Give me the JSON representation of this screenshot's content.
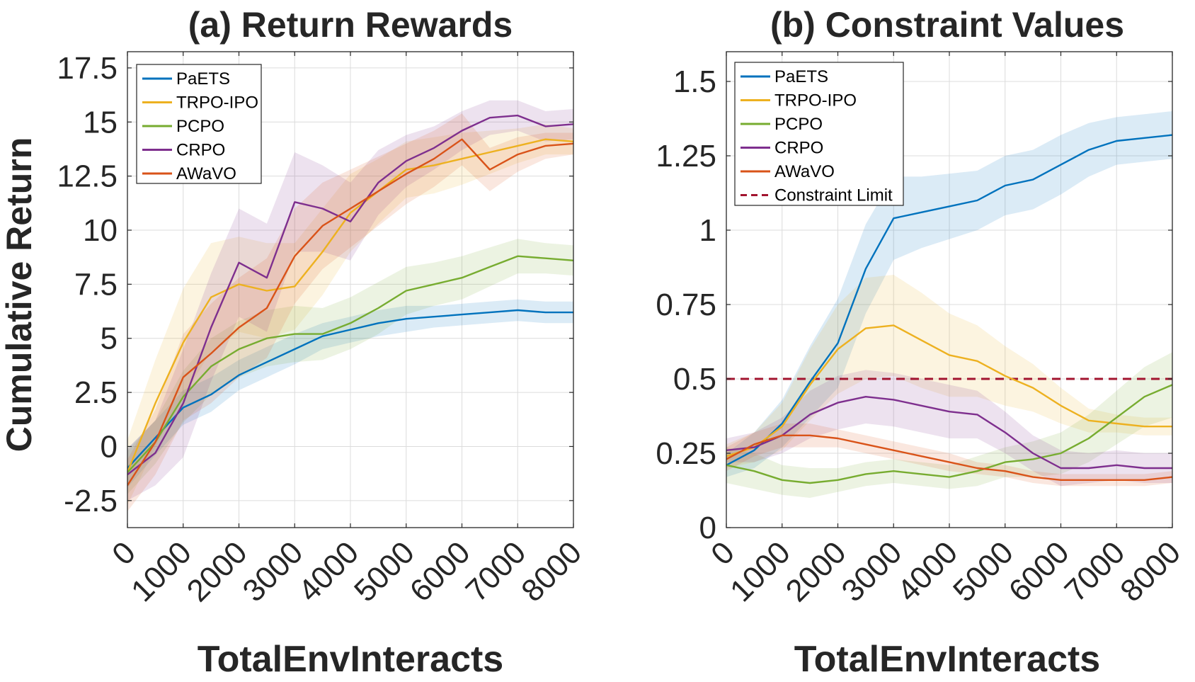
{
  "chart_data": [
    {
      "type": "line",
      "title": "(a) Return Rewards",
      "xlabel": "TotalEnvInteracts",
      "ylabel": "Cumulative Return",
      "xlim": [
        0,
        8000
      ],
      "ylim": [
        -3.75,
        18.25
      ],
      "xticks": [
        0,
        1000,
        2000,
        3000,
        4000,
        5000,
        6000,
        7000,
        8000
      ],
      "xtick_labels": [
        "0",
        "1000",
        "2000",
        "3000",
        "4000",
        "5000",
        "6000",
        "7000",
        "8000"
      ],
      "yticks": [
        -2.5,
        0,
        2.5,
        5,
        7.5,
        10,
        12.5,
        15,
        17.5
      ],
      "ytick_labels": [
        "-2.5",
        "0",
        "2.5",
        "5",
        "7.5",
        "10",
        "12.5",
        "15",
        "17.5"
      ],
      "grid": true,
      "legend_position": "top-left",
      "x": [
        0,
        500,
        1000,
        1500,
        2000,
        2500,
        3000,
        3500,
        4000,
        4500,
        5000,
        5500,
        6000,
        6500,
        7000,
        7500,
        8000
      ],
      "series": [
        {
          "name": "PaETS",
          "color": "#0072BD",
          "values": [
            -1.0,
            0.4,
            1.8,
            2.4,
            3.3,
            3.9,
            4.5,
            5.1,
            5.4,
            5.7,
            5.9,
            6.0,
            6.1,
            6.2,
            6.3,
            6.2,
            6.2
          ],
          "band": [
            0.9,
            0.8,
            0.8,
            0.8,
            0.7,
            0.7,
            0.7,
            0.6,
            0.6,
            0.6,
            0.6,
            0.5,
            0.5,
            0.5,
            0.5,
            0.5,
            0.5
          ]
        },
        {
          "name": "TRPO-IPO",
          "color": "#EDB120",
          "values": [
            -1.2,
            2.0,
            4.8,
            6.9,
            7.5,
            7.2,
            7.4,
            9.0,
            10.8,
            11.8,
            12.8,
            13.0,
            13.3,
            13.6,
            13.9,
            14.2,
            14.1
          ],
          "band": [
            1.5,
            2.0,
            2.5,
            2.5,
            2.2,
            2.2,
            2.0,
            2.0,
            1.8,
            1.5,
            1.3,
            1.3,
            1.2,
            1.0,
            0.8,
            0.7,
            0.6
          ]
        },
        {
          "name": "PCPO",
          "color": "#77AC30",
          "values": [
            -1.2,
            0.2,
            2.3,
            3.7,
            4.5,
            5.0,
            5.2,
            5.2,
            5.7,
            6.4,
            7.2,
            7.5,
            7.8,
            8.3,
            8.8,
            8.7,
            8.6
          ],
          "band": [
            1.0,
            1.0,
            1.2,
            1.3,
            1.3,
            1.3,
            1.3,
            1.2,
            1.2,
            1.2,
            1.1,
            1.0,
            1.0,
            0.9,
            0.8,
            0.7,
            0.7
          ]
        },
        {
          "name": "CRPO",
          "color": "#7E2F8E",
          "values": [
            -1.3,
            -0.3,
            2.0,
            5.5,
            8.5,
            7.8,
            11.3,
            11.0,
            10.4,
            12.2,
            13.2,
            13.8,
            14.6,
            15.2,
            15.3,
            14.8,
            14.9
          ],
          "band": [
            1.2,
            1.5,
            2.5,
            2.5,
            2.5,
            2.5,
            2.3,
            2.0,
            1.8,
            1.5,
            1.2,
            1.0,
            0.9,
            0.8,
            0.7,
            0.7,
            0.7
          ]
        },
        {
          "name": "AWaVO",
          "color": "#D95319",
          "values": [
            -1.8,
            0.2,
            3.2,
            4.3,
            5.5,
            6.4,
            8.8,
            10.2,
            11.0,
            11.8,
            12.6,
            13.3,
            14.2,
            12.8,
            13.5,
            13.9,
            14.0
          ],
          "band": [
            1.2,
            1.5,
            2.0,
            2.3,
            2.3,
            2.3,
            2.2,
            2.0,
            1.8,
            1.6,
            1.4,
            1.3,
            1.2,
            1.0,
            0.8,
            0.6,
            0.5
          ]
        }
      ]
    },
    {
      "type": "line",
      "title": "(b) Constraint Values",
      "xlabel": "TotalEnvInteracts",
      "ylabel": "",
      "xlim": [
        0,
        8000
      ],
      "ylim": [
        0,
        1.6
      ],
      "xticks": [
        0,
        1000,
        2000,
        3000,
        4000,
        5000,
        6000,
        7000,
        8000
      ],
      "xtick_labels": [
        "0",
        "1000",
        "2000",
        "3000",
        "4000",
        "5000",
        "6000",
        "7000",
        "8000"
      ],
      "yticks": [
        0,
        0.25,
        0.5,
        0.75,
        1,
        1.25,
        1.5
      ],
      "ytick_labels": [
        "0",
        "0.25",
        "0.5",
        "0.75",
        "1",
        "1.25",
        "1.5"
      ],
      "grid": true,
      "legend_position": "top-left",
      "x": [
        0,
        500,
        1000,
        1500,
        2000,
        2500,
        3000,
        3500,
        4000,
        4500,
        5000,
        5500,
        6000,
        6500,
        7000,
        7500,
        8000
      ],
      "series": [
        {
          "name": "PaETS",
          "color": "#0072BD",
          "values": [
            0.21,
            0.26,
            0.35,
            0.49,
            0.62,
            0.87,
            1.04,
            1.06,
            1.08,
            1.1,
            1.15,
            1.17,
            1.22,
            1.27,
            1.3,
            1.31,
            1.32
          ],
          "band": [
            0.04,
            0.06,
            0.08,
            0.12,
            0.15,
            0.15,
            0.14,
            0.12,
            0.11,
            0.1,
            0.1,
            0.1,
            0.1,
            0.09,
            0.08,
            0.08,
            0.08
          ]
        },
        {
          "name": "TRPO-IPO",
          "color": "#EDB120",
          "values": [
            0.24,
            0.27,
            0.34,
            0.48,
            0.6,
            0.67,
            0.68,
            0.63,
            0.58,
            0.56,
            0.51,
            0.47,
            0.41,
            0.36,
            0.35,
            0.34,
            0.34
          ],
          "band": [
            0.04,
            0.05,
            0.08,
            0.12,
            0.15,
            0.17,
            0.17,
            0.16,
            0.14,
            0.12,
            0.1,
            0.08,
            0.06,
            0.04,
            0.03,
            0.03,
            0.03
          ]
        },
        {
          "name": "PCPO",
          "color": "#77AC30",
          "values": [
            0.21,
            0.19,
            0.16,
            0.15,
            0.16,
            0.18,
            0.19,
            0.18,
            0.17,
            0.19,
            0.22,
            0.23,
            0.25,
            0.3,
            0.37,
            0.44,
            0.48
          ],
          "band": [
            0.06,
            0.06,
            0.05,
            0.05,
            0.04,
            0.04,
            0.04,
            0.04,
            0.04,
            0.05,
            0.05,
            0.06,
            0.07,
            0.08,
            0.09,
            0.1,
            0.11
          ]
        },
        {
          "name": "CRPO",
          "color": "#7E2F8E",
          "values": [
            0.26,
            0.27,
            0.31,
            0.38,
            0.42,
            0.44,
            0.43,
            0.41,
            0.39,
            0.38,
            0.32,
            0.25,
            0.2,
            0.2,
            0.21,
            0.2,
            0.2
          ],
          "band": [
            0.04,
            0.05,
            0.06,
            0.08,
            0.09,
            0.09,
            0.09,
            0.09,
            0.09,
            0.08,
            0.07,
            0.06,
            0.06,
            0.05,
            0.05,
            0.05,
            0.05
          ]
        },
        {
          "name": "AWaVO",
          "color": "#D95319",
          "values": [
            0.23,
            0.28,
            0.31,
            0.31,
            0.3,
            0.28,
            0.26,
            0.24,
            0.22,
            0.2,
            0.19,
            0.17,
            0.16,
            0.16,
            0.16,
            0.16,
            0.17
          ],
          "band": [
            0.04,
            0.04,
            0.04,
            0.04,
            0.03,
            0.03,
            0.03,
            0.03,
            0.03,
            0.02,
            0.02,
            0.02,
            0.02,
            0.02,
            0.02,
            0.02,
            0.02
          ]
        }
      ],
      "reference_lines": [
        {
          "name": "Constraint Limit",
          "y": 0.5,
          "color": "#A2142F",
          "style": "dashed"
        }
      ]
    }
  ]
}
